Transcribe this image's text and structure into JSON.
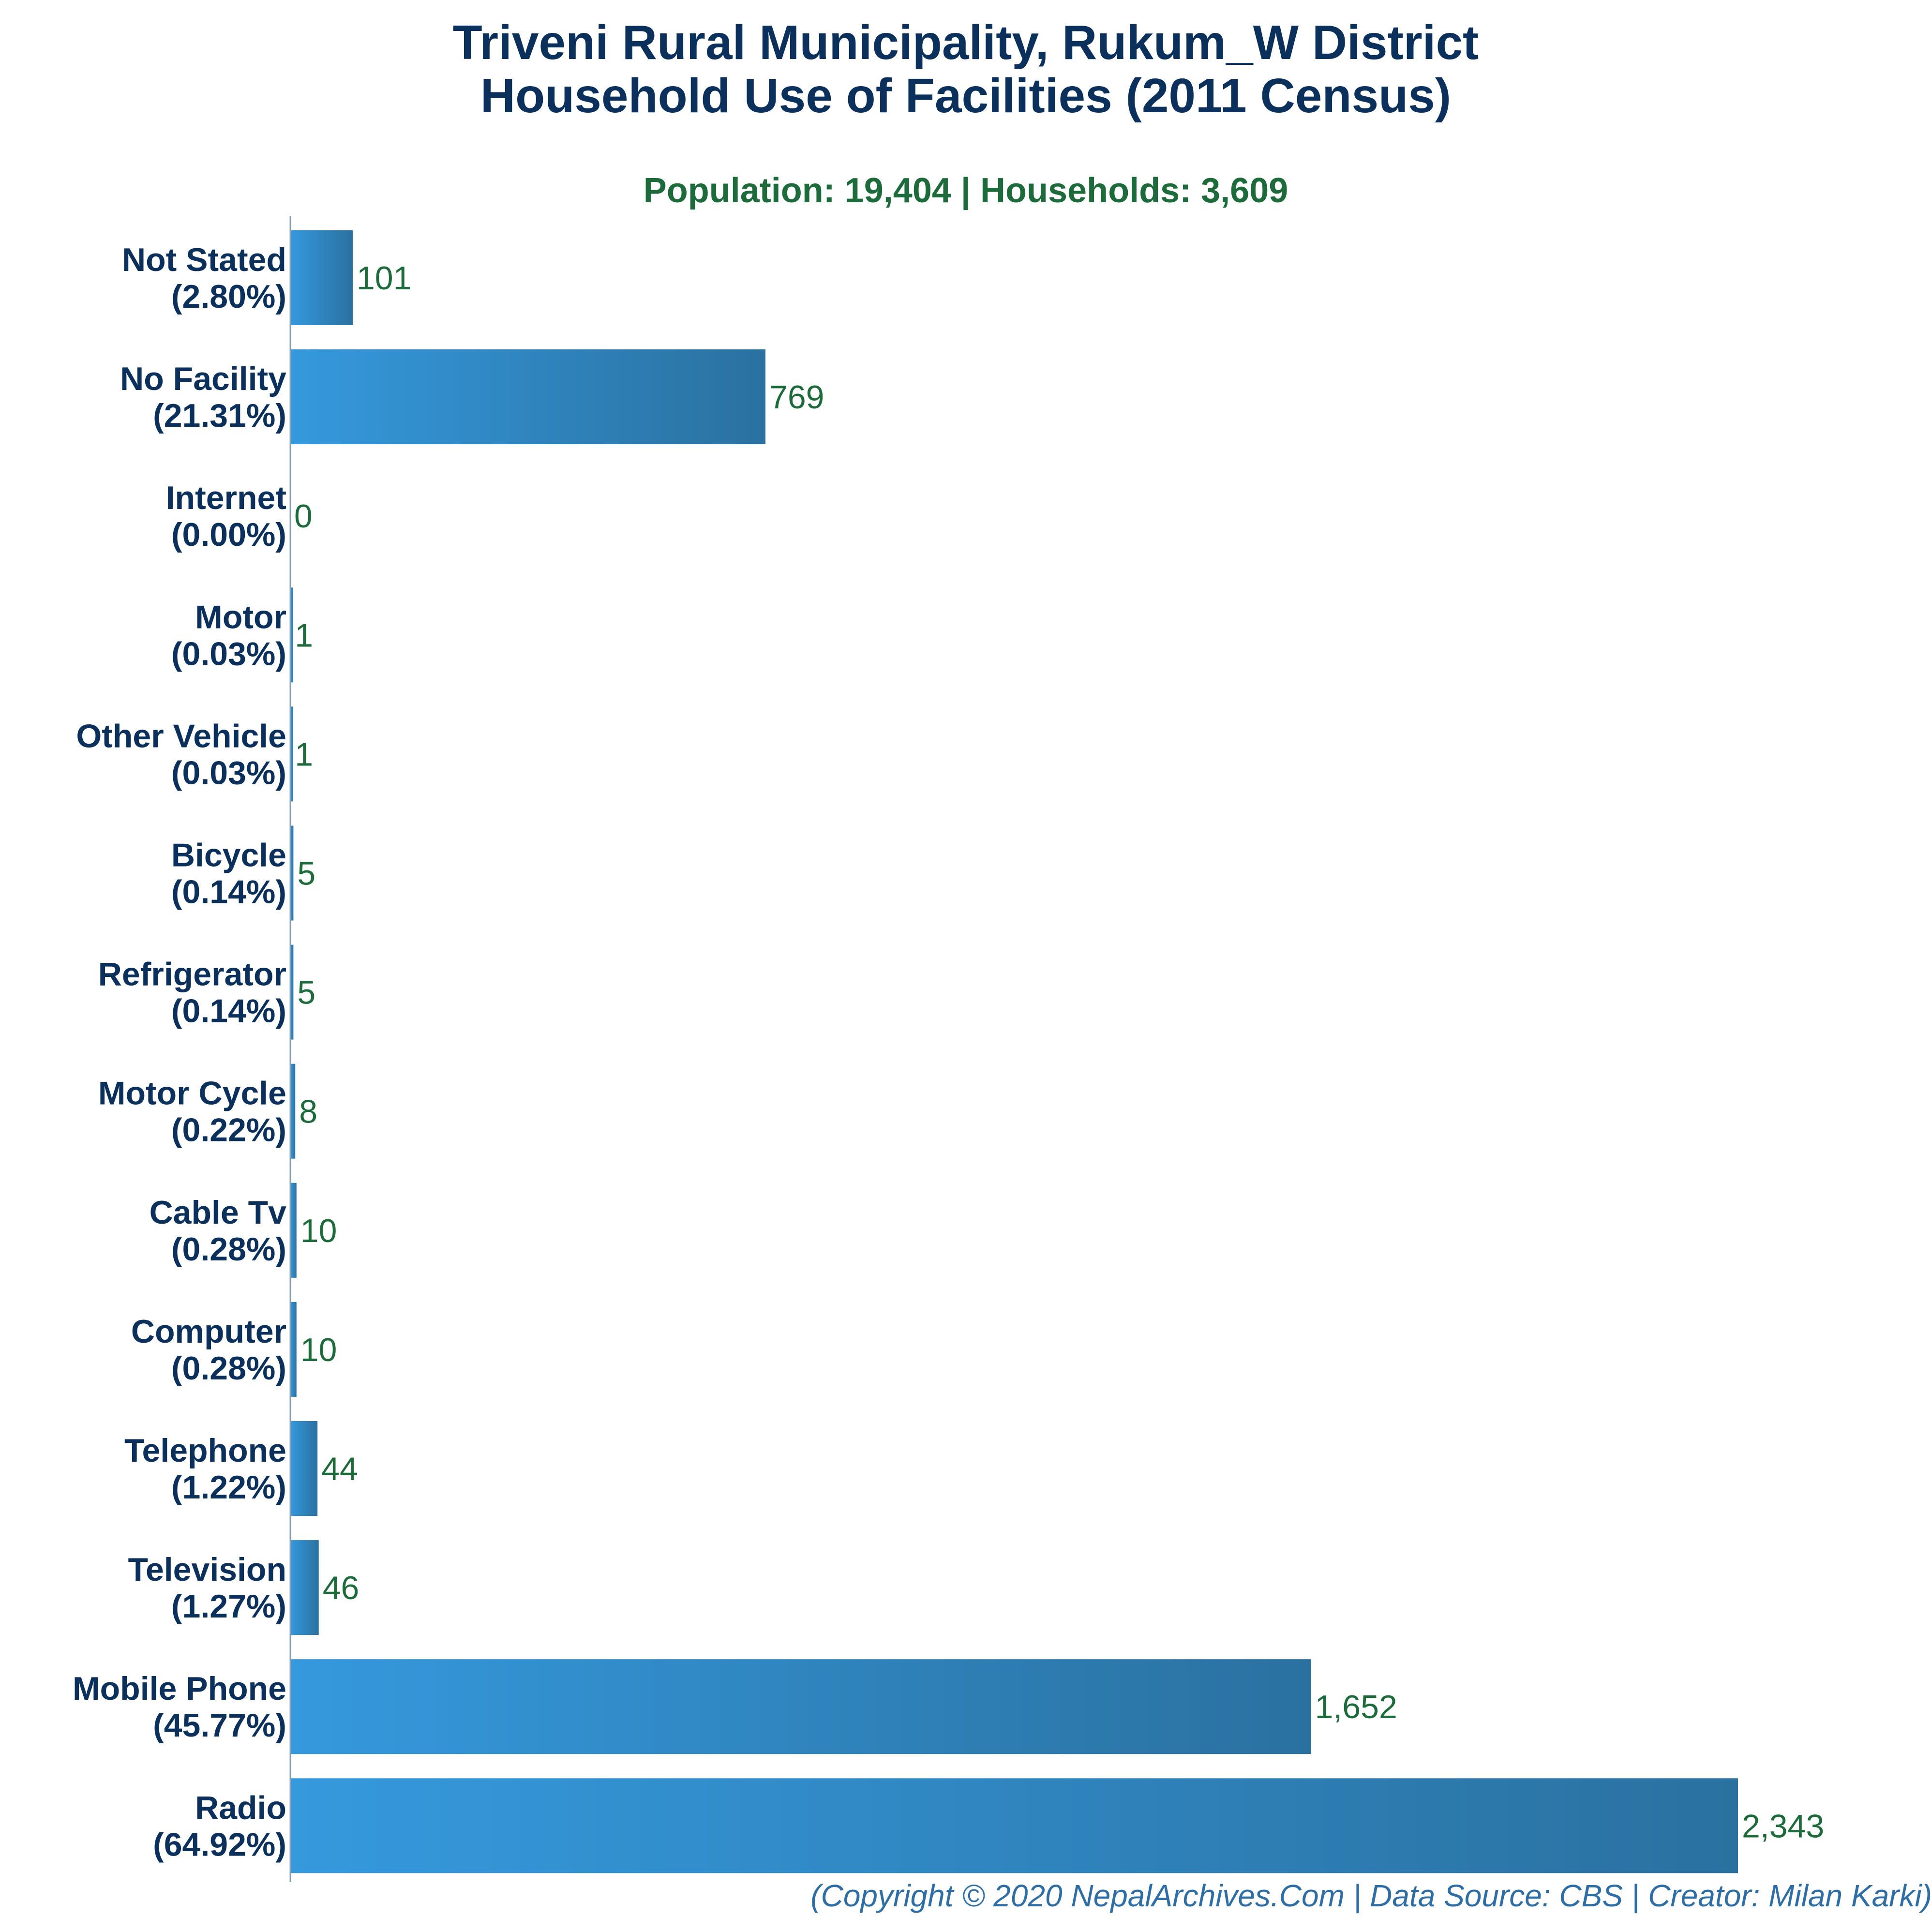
{
  "colors": {
    "title": "#0b305c",
    "subtitle": "#1d6b3a",
    "category_label": "#0b305c",
    "value_label": "#1d6b3a",
    "bar_light": "#3599dd",
    "bar_dark": "#2a71a0",
    "axis": "#8a9fb0",
    "footer": "#2f6ea5"
  },
  "chart_data": {
    "type": "bar",
    "orientation": "horizontal",
    "title": [
      "Triveni Rural Municipality, Rukum_W District",
      "Household Use of Facilities (2011 Census)"
    ],
    "subtitle": "Population: 19,404 | Households: 3,609",
    "footer": "(Copyright © 2020 NepalArchives.Com | Data Source: CBS | Creator: Milan Karki)",
    "categories": [
      {
        "name": "Not Stated",
        "percent": "(2.80%)",
        "value": 101,
        "value_label": "101"
      },
      {
        "name": "No Facility",
        "percent": "(21.31%)",
        "value": 769,
        "value_label": "769"
      },
      {
        "name": "Internet",
        "percent": "(0.00%)",
        "value": 0,
        "value_label": "0"
      },
      {
        "name": "Motor",
        "percent": "(0.03%)",
        "value": 1,
        "value_label": "1"
      },
      {
        "name": "Other Vehicle",
        "percent": "(0.03%)",
        "value": 1,
        "value_label": "1"
      },
      {
        "name": "Bicycle",
        "percent": "(0.14%)",
        "value": 5,
        "value_label": "5"
      },
      {
        "name": "Refrigerator",
        "percent": "(0.14%)",
        "value": 5,
        "value_label": "5"
      },
      {
        "name": "Motor Cycle",
        "percent": "(0.22%)",
        "value": 8,
        "value_label": "8"
      },
      {
        "name": "Cable Tv",
        "percent": "(0.28%)",
        "value": 10,
        "value_label": "10"
      },
      {
        "name": "Computer",
        "percent": "(0.28%)",
        "value": 10,
        "value_label": "10"
      },
      {
        "name": "Telephone",
        "percent": "(1.22%)",
        "value": 44,
        "value_label": "44"
      },
      {
        "name": "Television",
        "percent": "(1.27%)",
        "value": 46,
        "value_label": "46"
      },
      {
        "name": "Mobile Phone",
        "percent": "(45.77%)",
        "value": 1652,
        "value_label": "1,652"
      },
      {
        "name": "Radio",
        "percent": "(64.92%)",
        "value": 2343,
        "value_label": "2,343"
      }
    ],
    "xlim": [
      0,
      2343
    ],
    "grid": false,
    "legend": "none"
  }
}
